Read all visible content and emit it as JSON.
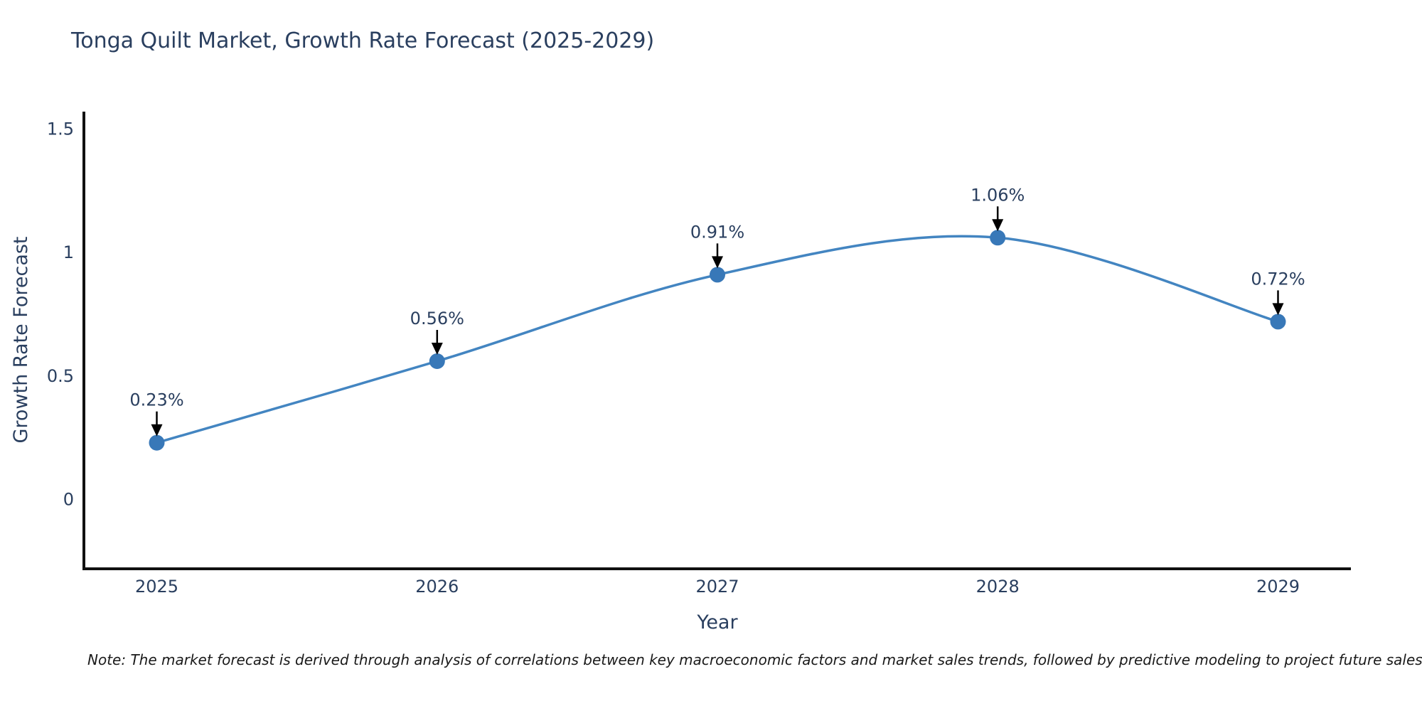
{
  "note": "Note: The market forecast is derived through analysis of correlations between key macroeconomic factors and market sales trends, followed by predictive modeling to project future sales",
  "colors": {
    "line": "#4385c1",
    "marker": "#3878b8",
    "text": "#2a3f5f",
    "axis": "#111111",
    "arrow": "#000000",
    "background": "#ffffff"
  },
  "chart_data": {
    "type": "line",
    "title": "Tonga Quilt Market, Growth Rate Forecast (2025-2029)",
    "xlabel": "Year",
    "ylabel": "Growth Rate Forecast",
    "x": [
      2025,
      2026,
      2027,
      2028,
      2029
    ],
    "values": [
      0.23,
      0.56,
      0.91,
      1.06,
      0.72
    ],
    "point_labels": [
      "0.23%",
      "0.56%",
      "1.06%",
      "0.72%"
    ],
    "point_labels_full": [
      "0.23%",
      "0.56%",
      "0.91%",
      "1.06%",
      "0.72%"
    ],
    "yticks": [
      0,
      0.5,
      1,
      1.5
    ],
    "ylim": [
      -0.28,
      1.57
    ],
    "xlim": [
      2024.74,
      2029.26
    ],
    "grid": false,
    "legend": "none",
    "line_shape": "spline",
    "marker_style": "filled-circle",
    "annotation_style": "value label with downward arrow to point"
  }
}
